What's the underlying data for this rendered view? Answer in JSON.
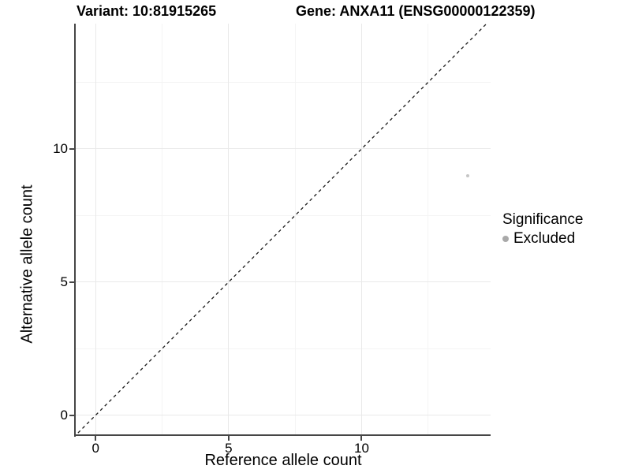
{
  "chart_data": {
    "type": "scatter",
    "title_left": "Variant: 10:81915265",
    "title_right": "Gene: ANXA11 (ENSG00000122359)",
    "xlabel": "Reference allele count",
    "ylabel": "Alternative allele count",
    "xlim": [
      -0.75,
      14.85
    ],
    "ylim": [
      -0.75,
      14.7
    ],
    "x_major_ticks": [
      0,
      5,
      10
    ],
    "y_major_ticks": [
      0,
      5,
      10
    ],
    "x_minor_gridlines": [
      2.5,
      7.5,
      12.5
    ],
    "y_minor_gridlines": [
      2.5,
      7.5,
      12.5
    ],
    "grid": "major and minor gridlines on, light gray",
    "identity_line": {
      "equation": "y = x",
      "style": "dashed",
      "color": "#1a1a1a"
    },
    "points": [
      {
        "x": 14,
        "y": 9,
        "significance": "Excluded",
        "color": "#c5c5c5"
      }
    ],
    "legend": {
      "position": "right-middle",
      "title": "Significance",
      "items": [
        {
          "label": "Excluded",
          "color": "#a9a9a9"
        }
      ]
    },
    "colors": {
      "axis": "#464646",
      "grid_major": "#e9e9e9",
      "grid_minor": "#f4f4f4",
      "text": "#000000"
    }
  }
}
